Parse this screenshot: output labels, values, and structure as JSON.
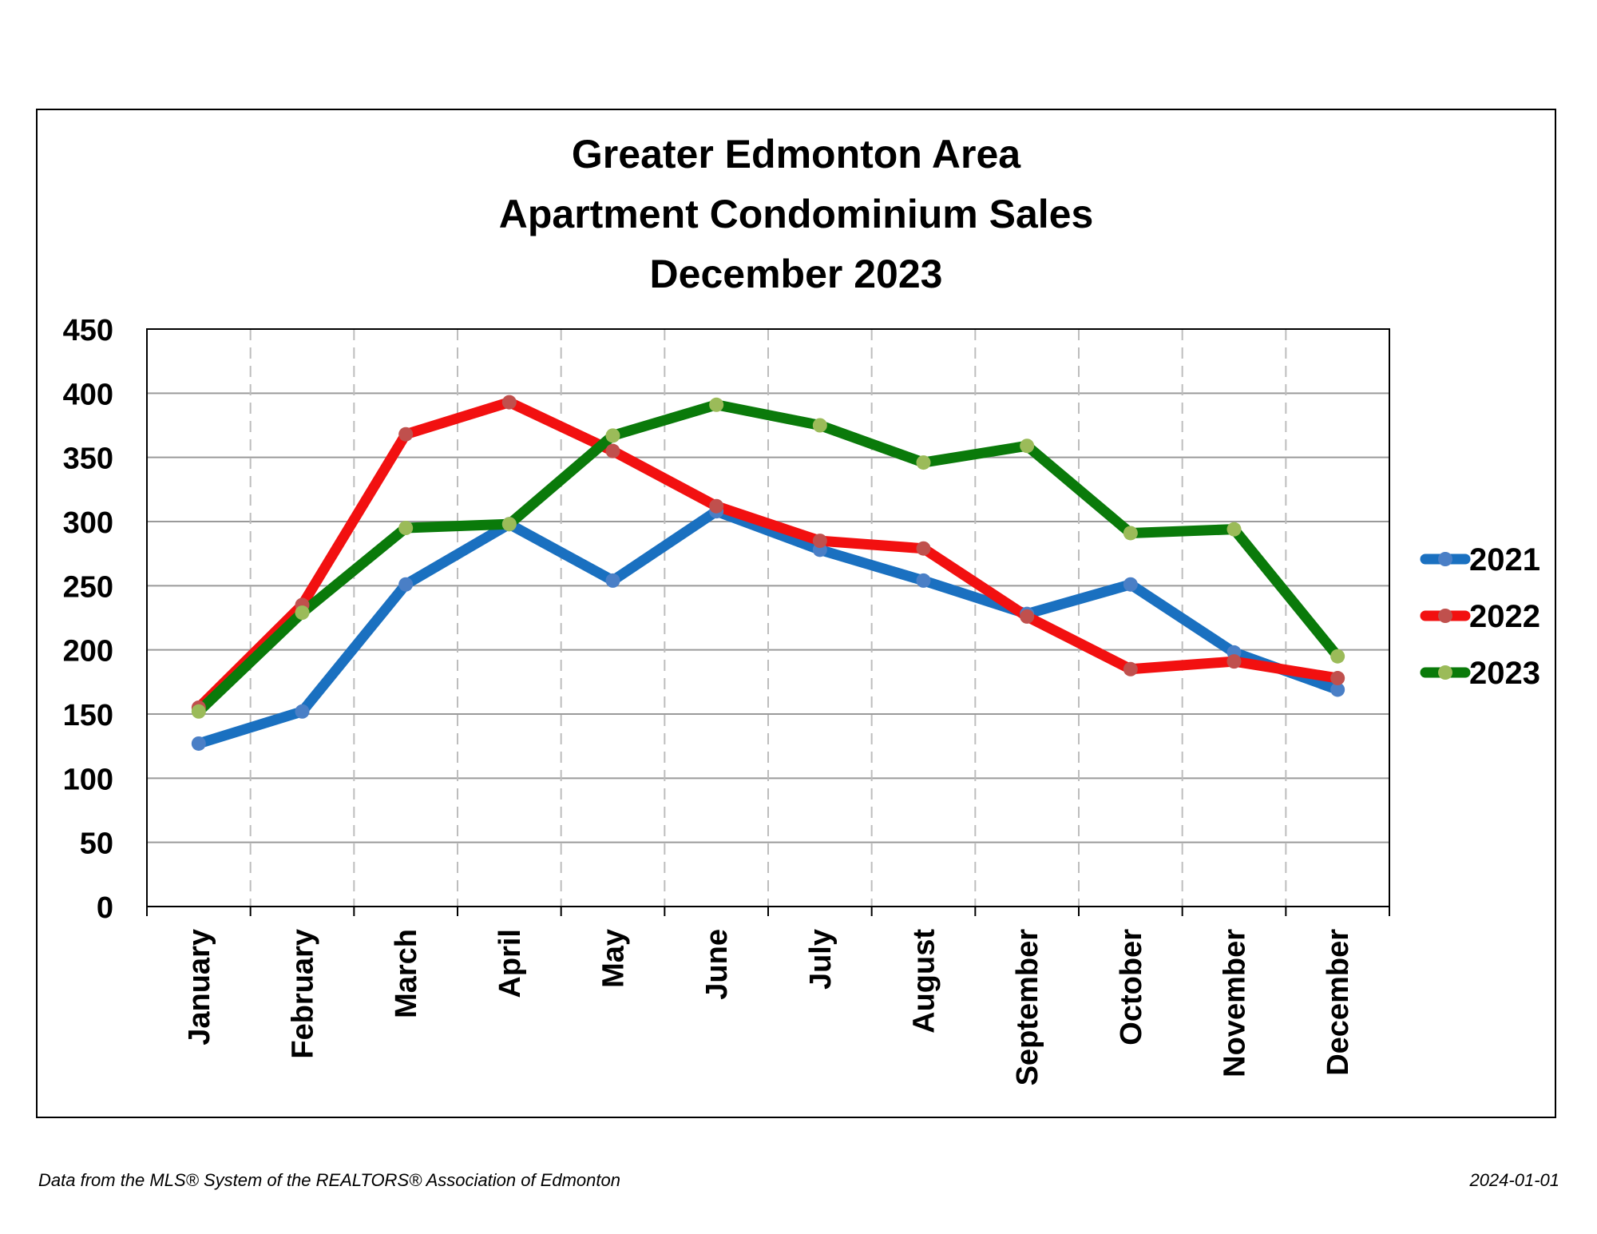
{
  "footer": {
    "source_note": "Data from the MLS® System of the REALTORS® Association of Edmonton",
    "date": "2024-01-01"
  },
  "chart_data": {
    "type": "line",
    "title_lines": [
      "Greater Edmonton Area",
      "Apartment Condominium Sales",
      "December 2023"
    ],
    "categories": [
      "January",
      "February",
      "March",
      "April",
      "May",
      "June",
      "July",
      "August",
      "September",
      "October",
      "November",
      "December"
    ],
    "series": [
      {
        "name": "2021",
        "color": "#1a70c0",
        "marker_color": "#4a7fc6",
        "values": [
          127,
          152,
          251,
          298,
          254,
          308,
          278,
          254,
          228,
          251,
          198,
          169
        ]
      },
      {
        "name": "2022",
        "color": "#f21010",
        "marker_color": "#c0504d",
        "values": [
          155,
          235,
          368,
          393,
          355,
          312,
          285,
          279,
          226,
          185,
          191,
          178
        ]
      },
      {
        "name": "2023",
        "color": "#0a7a0a",
        "marker_color": "#9bbb59",
        "values": [
          152,
          229,
          295,
          298,
          367,
          391,
          375,
          346,
          359,
          291,
          294,
          195
        ]
      }
    ],
    "ylim": [
      0,
      450
    ],
    "yticks": [
      "0",
      "50",
      "100",
      "150",
      "200",
      "250",
      "300",
      "350",
      "400",
      "450"
    ],
    "xlabel": "",
    "ylabel": "",
    "grid": {
      "horizontal": true,
      "vertical": "dashed"
    },
    "legend_position": "right"
  }
}
